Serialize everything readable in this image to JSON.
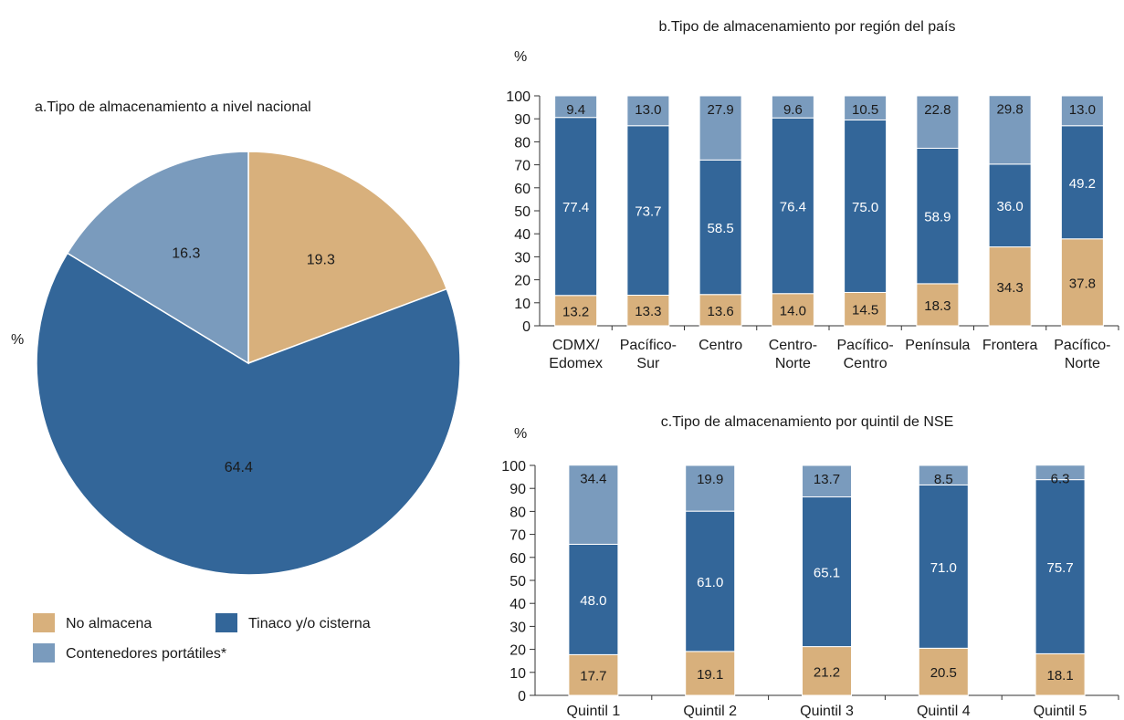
{
  "colors": {
    "no_almacena": "#d8b07c",
    "tinaco": "#336699",
    "contenedores": "#7a9bbd",
    "axis": "#333333"
  },
  "legend": {
    "items": [
      {
        "label": "No almacena",
        "color": "#d8b07c"
      },
      {
        "label": "Tinaco y/o cisterna",
        "color": "#336699"
      },
      {
        "label": "Contenedores portátiles*",
        "color": "#7a9bbd"
      }
    ]
  },
  "chart_data": [
    {
      "type": "pie",
      "title": "a.Tipo de almacenamiento a nivel nacional",
      "unit": "%",
      "slices": [
        {
          "name": "No almacena",
          "value": 19.3
        },
        {
          "name": "Tinaco y/o cisterna",
          "value": 64.4
        },
        {
          "name": "Contenedores portátiles*",
          "value": 16.3
        }
      ]
    },
    {
      "type": "bar",
      "stacked": true,
      "title": "b.Tipo de almacenamiento por región del país",
      "ylabel": "%",
      "ylim": [
        0,
        100
      ],
      "yticks": [
        0,
        10,
        20,
        30,
        40,
        50,
        60,
        70,
        80,
        90,
        100
      ],
      "categories": [
        [
          "CDMX/",
          "Edomex"
        ],
        [
          "Pacífico-",
          "Sur"
        ],
        [
          "Centro"
        ],
        [
          "Centro-",
          "Norte"
        ],
        [
          "Pacífico-",
          "Centro"
        ],
        [
          "Península"
        ],
        [
          "Frontera"
        ],
        [
          "Pacífico-",
          "Norte"
        ]
      ],
      "series": [
        {
          "name": "No almacena",
          "values": [
            13.2,
            13.3,
            13.6,
            14.0,
            14.5,
            18.3,
            34.3,
            37.8
          ]
        },
        {
          "name": "Tinaco y/o cisterna",
          "values": [
            77.4,
            73.7,
            58.5,
            76.4,
            75.0,
            58.9,
            36.0,
            49.2
          ]
        },
        {
          "name": "Contenedores portátiles*",
          "values": [
            9.4,
            13.0,
            27.9,
            9.6,
            10.5,
            22.8,
            29.8,
            13.0
          ]
        }
      ]
    },
    {
      "type": "bar",
      "stacked": true,
      "title": "c.Tipo de almacenamiento por quintil de NSE",
      "ylabel": "%",
      "ylim": [
        0,
        100
      ],
      "yticks": [
        0,
        10,
        20,
        30,
        40,
        50,
        60,
        70,
        80,
        90,
        100
      ],
      "categories": [
        [
          "Quintil 1"
        ],
        [
          "Quintil 2"
        ],
        [
          "Quintil 3"
        ],
        [
          "Quintil 4"
        ],
        [
          "Quintil 5"
        ]
      ],
      "series": [
        {
          "name": "No almacena",
          "values": [
            17.7,
            19.1,
            21.2,
            20.5,
            18.1
          ]
        },
        {
          "name": "Tinaco y/o cisterna",
          "values": [
            48.0,
            61.0,
            65.1,
            71.0,
            75.7
          ]
        },
        {
          "name": "Contenedores portátiles*",
          "values": [
            34.4,
            19.9,
            13.7,
            8.5,
            6.3
          ]
        }
      ]
    }
  ]
}
